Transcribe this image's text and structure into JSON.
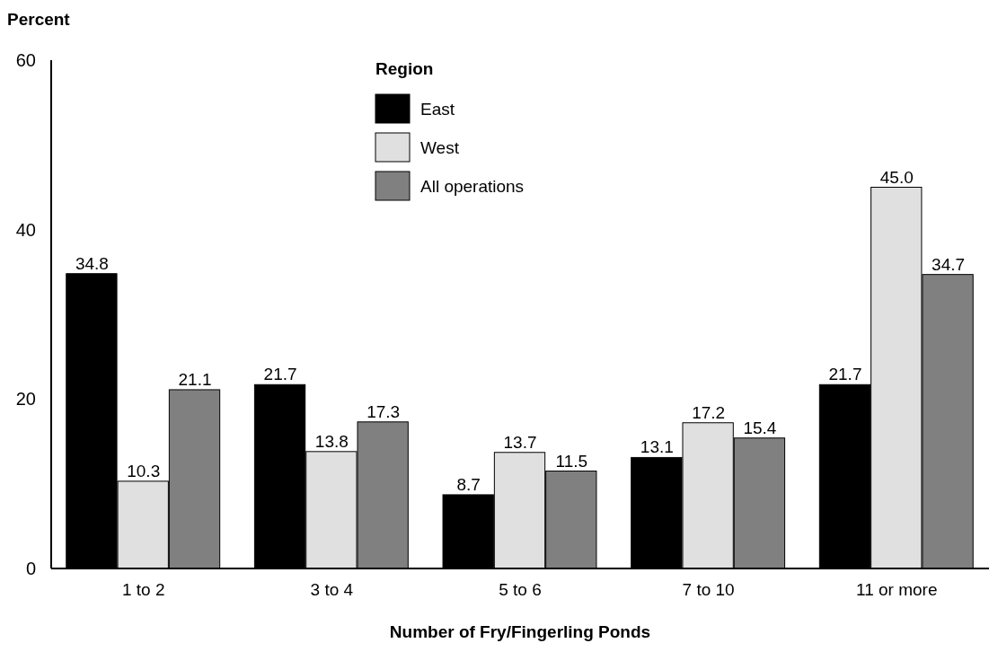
{
  "chart_data": {
    "type": "bar",
    "ylabel": "Percent",
    "xlabel": "Number of Fry/Fingerling Ponds",
    "legend_title": "Region",
    "legend": "top",
    "grid": false,
    "categories": [
      "1 to 2",
      "3 to 4",
      "5 to 6",
      "7 to 10",
      "11 or more"
    ],
    "ylim": [
      0,
      60
    ],
    "yticks": [
      0,
      20,
      40,
      60
    ],
    "series": [
      {
        "name": "East",
        "color": "#000000",
        "values": [
          34.8,
          21.7,
          8.7,
          13.1,
          21.7
        ],
        "value_labels": [
          "34.8",
          "21.7",
          "8.7",
          "13.1",
          "21.7"
        ]
      },
      {
        "name": "West",
        "color": "#e0e0e0",
        "values": [
          10.3,
          13.8,
          13.7,
          17.2,
          45.0
        ],
        "value_labels": [
          "10.3",
          "13.8",
          "13.7",
          "17.2",
          "45.0"
        ]
      },
      {
        "name": "All operations",
        "color": "#808080",
        "values": [
          21.1,
          17.3,
          11.5,
          15.4,
          34.7
        ],
        "value_labels": [
          "21.1",
          "17.3",
          "11.5",
          "15.4",
          "34.7"
        ]
      }
    ]
  }
}
